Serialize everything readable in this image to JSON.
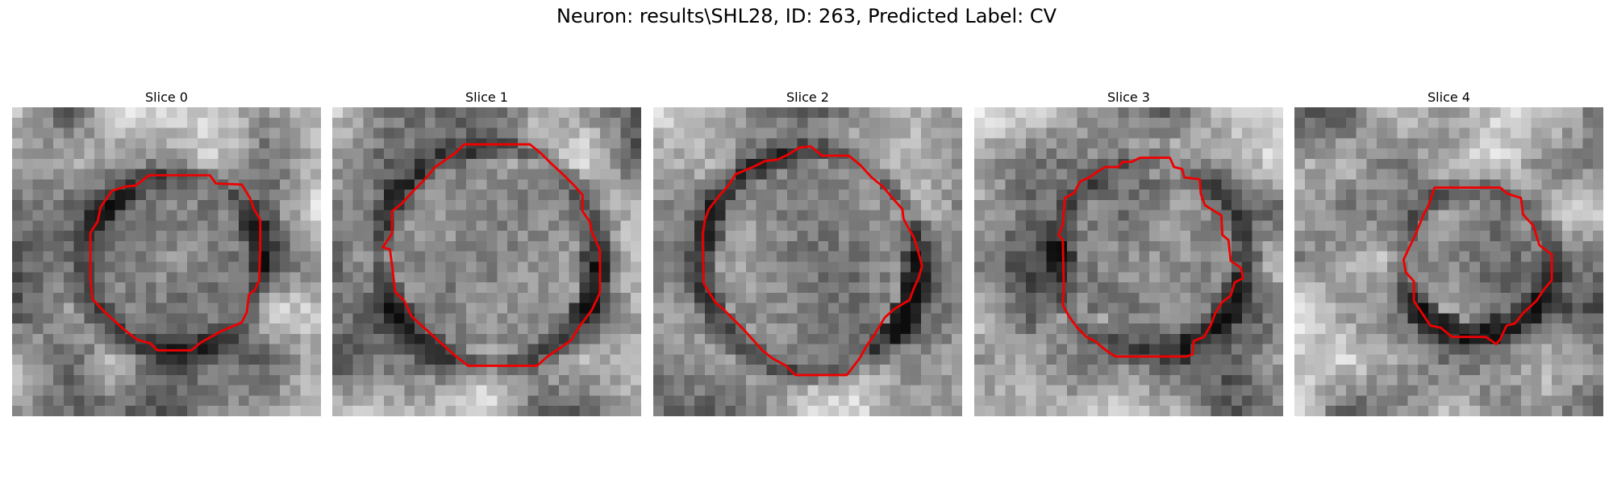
{
  "figure": {
    "title": "Neuron: results\\SHL28, ID: 263, Predicted Label: CV"
  },
  "panels": [
    {
      "title": "Slice 0"
    },
    {
      "title": "Slice 1"
    },
    {
      "title": "Slice 2"
    },
    {
      "title": "Slice 3"
    },
    {
      "title": "Slice 4"
    }
  ],
  "colors": {
    "contour": "#ee0000",
    "background": "#ffffff"
  }
}
